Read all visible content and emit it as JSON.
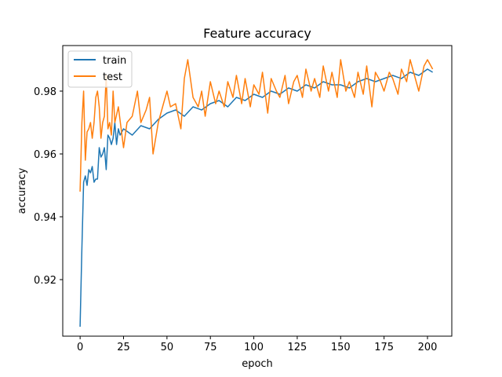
{
  "chart_data": {
    "type": "line",
    "title": "Feature accuracy",
    "xlabel": "epoch",
    "ylabel": "accuracy",
    "xlim": [
      -10,
      214
    ],
    "ylim": [
      0.902,
      0.9945
    ],
    "xticks": [
      0,
      25,
      50,
      75,
      100,
      125,
      150,
      175,
      200
    ],
    "yticks": [
      0.92,
      0.94,
      0.96,
      0.98
    ],
    "xtick_labels": [
      "0",
      "25",
      "50",
      "75",
      "100",
      "125",
      "150",
      "175",
      "200"
    ],
    "ytick_labels": [
      "0.92",
      "0.94",
      "0.96",
      "0.98"
    ],
    "grid": false,
    "legend_position": "upper-left",
    "series": [
      {
        "name": "train",
        "color": "#1f77b4",
        "x": [
          0,
          1,
          2,
          3,
          4,
          5,
          6,
          7,
          8,
          9,
          10,
          11,
          12,
          13,
          14,
          15,
          16,
          17,
          18,
          19,
          20,
          21,
          22,
          23,
          24,
          25,
          30,
          35,
          40,
          45,
          50,
          55,
          60,
          65,
          70,
          75,
          80,
          85,
          90,
          95,
          100,
          105,
          110,
          115,
          120,
          125,
          130,
          135,
          140,
          145,
          150,
          155,
          160,
          165,
          170,
          175,
          180,
          185,
          190,
          195,
          200,
          203
        ],
        "values": [
          0.905,
          0.93,
          0.951,
          0.953,
          0.95,
          0.955,
          0.954,
          0.956,
          0.951,
          0.952,
          0.952,
          0.962,
          0.959,
          0.96,
          0.962,
          0.955,
          0.966,
          0.965,
          0.963,
          0.965,
          0.97,
          0.963,
          0.968,
          0.966,
          0.967,
          0.968,
          0.966,
          0.969,
          0.968,
          0.971,
          0.973,
          0.974,
          0.972,
          0.975,
          0.974,
          0.976,
          0.977,
          0.975,
          0.978,
          0.977,
          0.979,
          0.978,
          0.98,
          0.979,
          0.981,
          0.98,
          0.982,
          0.981,
          0.983,
          0.982,
          0.982,
          0.981,
          0.983,
          0.984,
          0.983,
          0.984,
          0.985,
          0.984,
          0.986,
          0.985,
          0.987,
          0.986
        ]
      },
      {
        "name": "test",
        "color": "#ff7f0e",
        "x": [
          0,
          1,
          2,
          3,
          4,
          5,
          6,
          7,
          8,
          9,
          10,
          11,
          12,
          13,
          14,
          15,
          16,
          17,
          18,
          19,
          20,
          22,
          25,
          27,
          30,
          33,
          35,
          38,
          40,
          42,
          45,
          48,
          50,
          52,
          55,
          58,
          60,
          62,
          65,
          68,
          70,
          72,
          75,
          78,
          80,
          83,
          85,
          88,
          90,
          93,
          95,
          98,
          100,
          103,
          105,
          108,
          110,
          113,
          115,
          118,
          120,
          123,
          125,
          128,
          130,
          133,
          135,
          138,
          140,
          143,
          145,
          148,
          150,
          153,
          155,
          158,
          160,
          163,
          165,
          168,
          170,
          173,
          175,
          178,
          180,
          183,
          185,
          188,
          190,
          193,
          195,
          198,
          200,
          203
        ],
        "values": [
          0.948,
          0.97,
          0.98,
          0.958,
          0.967,
          0.968,
          0.97,
          0.965,
          0.97,
          0.978,
          0.98,
          0.975,
          0.965,
          0.97,
          0.972,
          0.985,
          0.968,
          0.97,
          0.966,
          0.98,
          0.97,
          0.975,
          0.962,
          0.97,
          0.972,
          0.98,
          0.97,
          0.974,
          0.978,
          0.96,
          0.97,
          0.976,
          0.98,
          0.975,
          0.976,
          0.968,
          0.984,
          0.99,
          0.978,
          0.975,
          0.98,
          0.972,
          0.983,
          0.976,
          0.98,
          0.975,
          0.983,
          0.978,
          0.985,
          0.976,
          0.984,
          0.975,
          0.982,
          0.979,
          0.986,
          0.973,
          0.984,
          0.98,
          0.978,
          0.985,
          0.976,
          0.983,
          0.985,
          0.978,
          0.987,
          0.98,
          0.984,
          0.978,
          0.988,
          0.98,
          0.986,
          0.978,
          0.99,
          0.98,
          0.983,
          0.978,
          0.986,
          0.979,
          0.988,
          0.975,
          0.986,
          0.983,
          0.98,
          0.986,
          0.984,
          0.979,
          0.987,
          0.983,
          0.99,
          0.984,
          0.98,
          0.988,
          0.99,
          0.987
        ]
      }
    ]
  }
}
